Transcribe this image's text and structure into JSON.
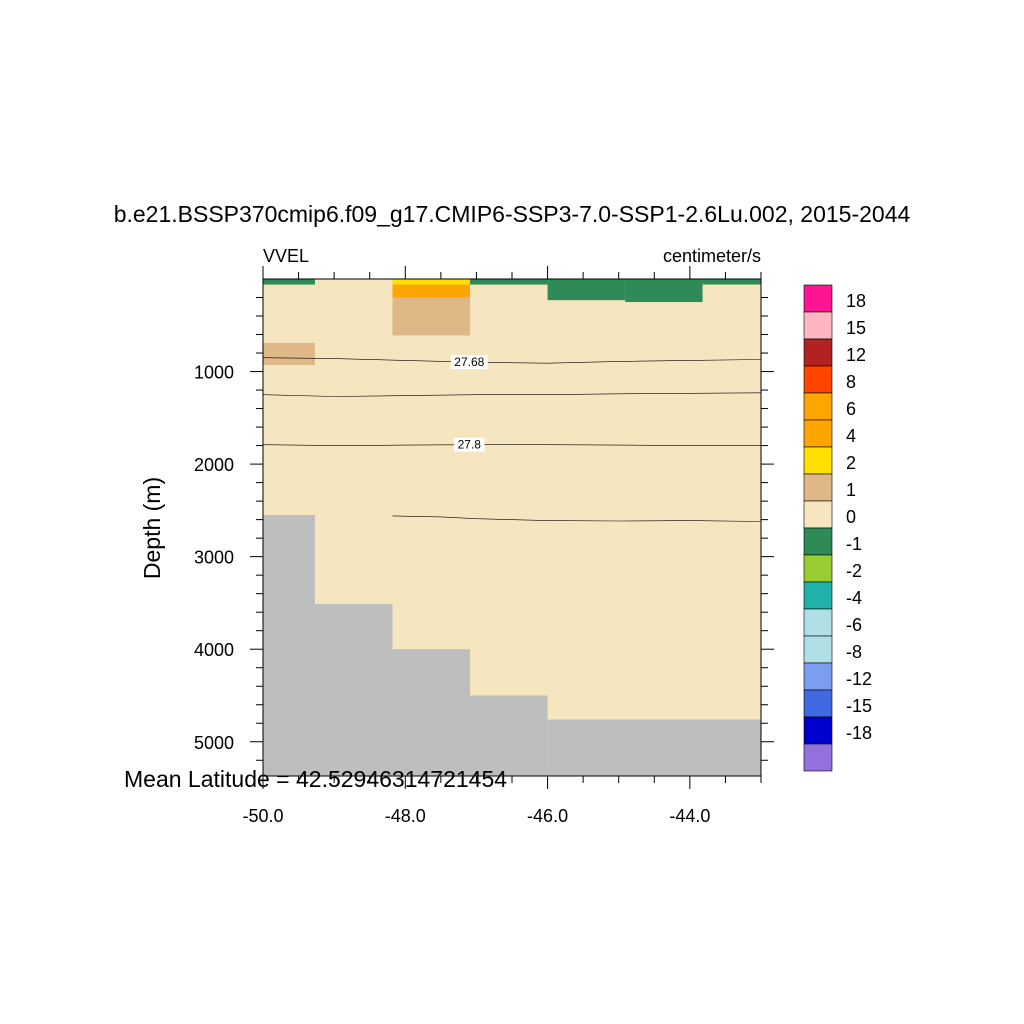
{
  "chart_data": {
    "type": "heatmap",
    "title": "b.e21.BSSP370cmip6.f09_g17.CMIP6-SSP3-7.0-SSP1-2.6Lu.002, 2015-2044",
    "left_label": "VVEL",
    "right_label": "centimeter/s",
    "ylabel": "Depth (m)",
    "xlabel": "",
    "footer": "Mean Latitude = 42.52946314721454",
    "xlim": [
      -50.0,
      -43.0
    ],
    "ylim": [
      5370,
      0
    ],
    "x_major_ticks": [
      -50.0,
      -48.0,
      -46.0,
      -44.0
    ],
    "x_tick_labels": [
      "-50.0",
      "-48.0",
      "-46.0",
      "-44.0"
    ],
    "y_major_ticks": [
      1000,
      2000,
      3000,
      4000,
      5000
    ],
    "y_tick_labels": [
      "1000",
      "2000",
      "3000",
      "4000",
      "5000"
    ],
    "background_level": 0,
    "land_color": "#bebebe",
    "colorbar": {
      "levels": [
        "18",
        "15",
        "12",
        "8",
        "6",
        "4",
        "2",
        "1",
        "0",
        "-1",
        "-2",
        "-4",
        "-6",
        "-8",
        "-12",
        "-15",
        "-18"
      ],
      "colors": [
        "#ff1493",
        "#ffb6c1",
        "#b22222",
        "#ff4500",
        "#ffa500",
        "#ffa500",
        "#ffe000",
        "#deb887",
        "#f5e6c0",
        "#2e8b57",
        "#9acd32",
        "#20b2aa",
        "#b0e0e6",
        "#b0e0e6",
        "#7b9ef0",
        "#4169e1",
        "#0000cd",
        "#9370db"
      ]
    },
    "cells": [
      {
        "x": [
          -50.0,
          -49.27
        ],
        "y": [
          0,
          60
        ],
        "level": -1
      },
      {
        "x": [
          -48.18,
          -47.09
        ],
        "y": [
          0,
          60
        ],
        "level": 2
      },
      {
        "x": [
          -48.18,
          -47.09
        ],
        "y": [
          60,
          200
        ],
        "level": 4
      },
      {
        "x": [
          -48.18,
          -47.09
        ],
        "y": [
          200,
          610
        ],
        "level": 1
      },
      {
        "x": [
          -47.09,
          -46.0
        ],
        "y": [
          0,
          60
        ],
        "level": -1
      },
      {
        "x": [
          -46.0,
          -44.91
        ],
        "y": [
          0,
          230
        ],
        "level": -1
      },
      {
        "x": [
          -44.91,
          -43.82
        ],
        "y": [
          0,
          250
        ],
        "level": -1
      },
      {
        "x": [
          -43.82,
          -43.0
        ],
        "y": [
          0,
          60
        ],
        "level": -1
      },
      {
        "x": [
          -46.0,
          -44.91
        ],
        "y": [
          230,
          830
        ],
        "level": 0
      },
      {
        "x": [
          -44.91,
          -43.82
        ],
        "y": [
          250,
          830
        ],
        "level": 0
      },
      {
        "x": [
          -43.82,
          -43.0
        ],
        "y": [
          60,
          930
        ],
        "level": 0
      },
      {
        "x": [
          -50.0,
          -49.27
        ],
        "y": [
          690,
          930
        ],
        "level": 1
      },
      {
        "x": [
          -49.27,
          -48.18
        ],
        "y": [
          600,
          1670
        ],
        "level": 0
      }
    ],
    "bathymetry": [
      {
        "x": [
          -50.0,
          -49.27
        ],
        "depth": 2550
      },
      {
        "x": [
          -49.27,
          -48.18
        ],
        "depth": 3510
      },
      {
        "x": [
          -48.18,
          -47.09
        ],
        "depth": 4000
      },
      {
        "x": [
          -47.09,
          -46.0
        ],
        "depth": 4500
      },
      {
        "x": [
          -46.0,
          -43.0
        ],
        "depth": 4760
      }
    ],
    "contours": [
      {
        "label": "27.68",
        "label_x": -47.1,
        "points": [
          [
            -50.0,
            850
          ],
          [
            -49.0,
            860
          ],
          [
            -48.0,
            880
          ],
          [
            -47.0,
            900
          ],
          [
            -46.0,
            910
          ],
          [
            -45.0,
            890
          ],
          [
            -44.0,
            880
          ],
          [
            -43.0,
            870
          ]
        ]
      },
      {
        "label": "",
        "label_x": null,
        "points": [
          [
            -50.0,
            1250
          ],
          [
            -49.0,
            1270
          ],
          [
            -48.0,
            1260
          ],
          [
            -47.0,
            1250
          ],
          [
            -46.0,
            1250
          ],
          [
            -45.0,
            1240
          ],
          [
            -44.0,
            1235
          ],
          [
            -43.0,
            1230
          ]
        ]
      },
      {
        "label": "27.8",
        "label_x": -47.1,
        "points": [
          [
            -50.0,
            1790
          ],
          [
            -49.0,
            1800
          ],
          [
            -48.0,
            1795
          ],
          [
            -47.0,
            1790
          ],
          [
            -46.0,
            1790
          ],
          [
            -45.0,
            1795
          ],
          [
            -44.0,
            1800
          ],
          [
            -43.0,
            1800
          ]
        ]
      },
      {
        "label": "",
        "label_x": null,
        "points": [
          [
            -48.18,
            2560
          ],
          [
            -47.5,
            2570
          ],
          [
            -47.0,
            2590
          ],
          [
            -46.0,
            2610
          ],
          [
            -45.0,
            2615
          ],
          [
            -44.0,
            2610
          ],
          [
            -43.0,
            2620
          ]
        ]
      }
    ]
  }
}
